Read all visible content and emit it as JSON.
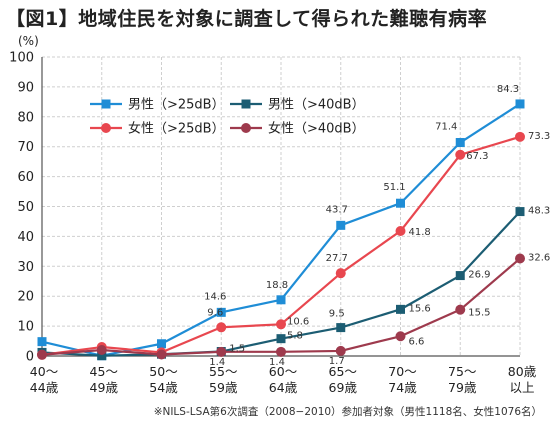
{
  "header": {
    "title": "【図1】地域住民を対象に調査して得られた難聴有病率"
  },
  "footer": {
    "note": "※NILS-LSA第6次調査（2008−2010）参加者対象（男性1118名、女性1076名）"
  },
  "chart_data": {
    "type": "line",
    "title": "【図1】地域住民を対象に調査して得られた難聴有病率",
    "ylabel": "(%)",
    "xlabel": "",
    "ylim": [
      0,
      100
    ],
    "yticks": [
      0,
      10,
      20,
      30,
      40,
      50,
      60,
      70,
      80,
      90,
      100
    ],
    "grid": true,
    "legend_position": "top-left",
    "categories": [
      [
        "40〜",
        "44歳"
      ],
      [
        "45〜",
        "49歳"
      ],
      [
        "50〜",
        "54歳"
      ],
      [
        "55〜",
        "59歳"
      ],
      [
        "60〜",
        "64歳"
      ],
      [
        "65〜",
        "69歳"
      ],
      [
        "70〜",
        "74歳"
      ],
      [
        "75〜",
        "79歳"
      ],
      [
        "80歳",
        "以上"
      ]
    ],
    "series": [
      {
        "name": "男性（>25dB）",
        "color": "#1f8dd6",
        "marker": "square",
        "values": [
          4.8,
          0.1,
          4.1,
          14.6,
          18.8,
          43.7,
          51.1,
          71.4,
          84.3
        ],
        "labels": [
          null,
          null,
          null,
          "14.6",
          "18.8",
          "43.7",
          "51.1",
          "71.4",
          "84.3"
        ]
      },
      {
        "name": "男性（>40dB）",
        "color": "#1c5d73",
        "marker": "square",
        "values": [
          1.2,
          0.1,
          0.6,
          1.5,
          5.8,
          9.5,
          15.6,
          26.9,
          48.3
        ],
        "labels": [
          null,
          null,
          null,
          "1.5",
          "5.8",
          "9.5",
          "15.6",
          "26.9",
          "48.3"
        ]
      },
      {
        "name": "女性（>25dB）",
        "color": "#e8474f",
        "marker": "circle",
        "values": [
          0.4,
          3.0,
          1.2,
          9.6,
          10.6,
          27.7,
          41.8,
          67.3,
          73.3
        ],
        "labels": [
          null,
          null,
          null,
          "9.6",
          "10.6",
          "27.7",
          "41.8",
          "67.3",
          "73.3"
        ]
      },
      {
        "name": "女性（>40dB）",
        "color": "#9e3a4d",
        "marker": "circle",
        "values": [
          0.4,
          2.0,
          0.5,
          1.4,
          1.4,
          1.7,
          6.6,
          15.5,
          32.6
        ],
        "labels": [
          null,
          null,
          null,
          "1.4",
          "1.4",
          "1.7",
          "6.6",
          "15.5",
          "32.6"
        ]
      }
    ]
  }
}
